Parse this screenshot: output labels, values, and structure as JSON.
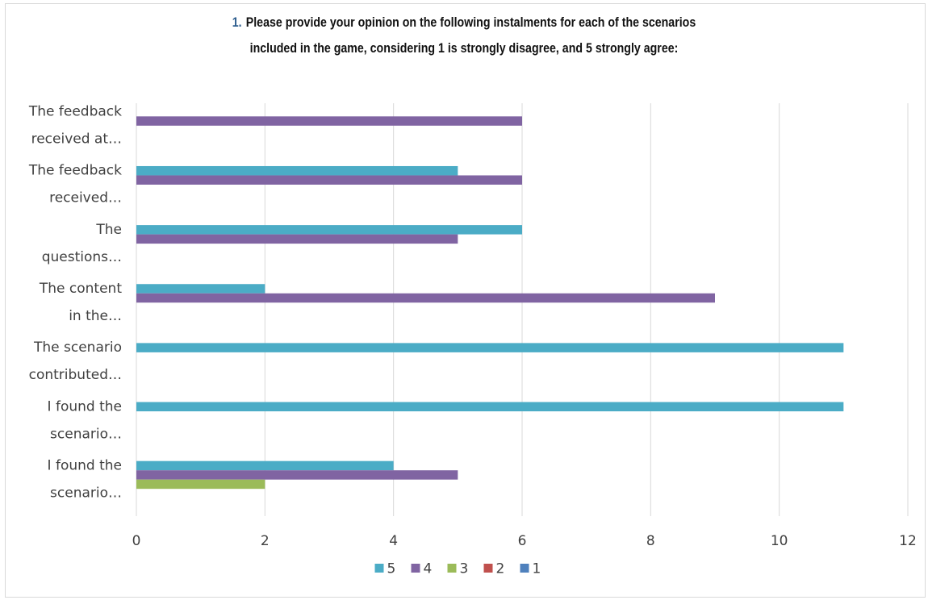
{
  "chart_data": {
    "type": "bar",
    "orientation": "horizontal",
    "title_number": "1.",
    "title_lines": [
      "Please provide your opinion on the following instalments for each of the scenarios",
      "included in the game, considering 1 is strongly disagree, and 5 strongly agree:"
    ],
    "categories": [
      [
        "The feedback",
        "received at…"
      ],
      [
        "The feedback",
        "received…"
      ],
      [
        "The",
        "questions…"
      ],
      [
        "The content",
        "in the…"
      ],
      [
        "The scenario",
        "contributed…"
      ],
      [
        "I found the",
        "scenario…"
      ],
      [
        "I found the",
        "scenario…"
      ]
    ],
    "series": [
      {
        "name": "5",
        "color": "#4bacc6",
        "values": [
          0,
          5,
          6,
          2,
          11,
          11,
          4
        ]
      },
      {
        "name": "4",
        "color": "#8064a2",
        "values": [
          6,
          6,
          5,
          9,
          0,
          0,
          5
        ]
      },
      {
        "name": "3",
        "color": "#9bbb59",
        "values": [
          0,
          0,
          0,
          0,
          0,
          0,
          2
        ]
      },
      {
        "name": "2",
        "color": "#c0504d",
        "values": [
          0,
          0,
          0,
          0,
          0,
          0,
          0
        ]
      },
      {
        "name": "1",
        "color": "#4f81bd",
        "values": [
          0,
          0,
          0,
          0,
          0,
          0,
          0
        ]
      }
    ],
    "xlim": [
      0,
      12
    ],
    "xticks": [
      "0",
      "2",
      "4",
      "6",
      "8",
      "10",
      "12"
    ],
    "grid": "vertical",
    "legend_position": "bottom"
  }
}
